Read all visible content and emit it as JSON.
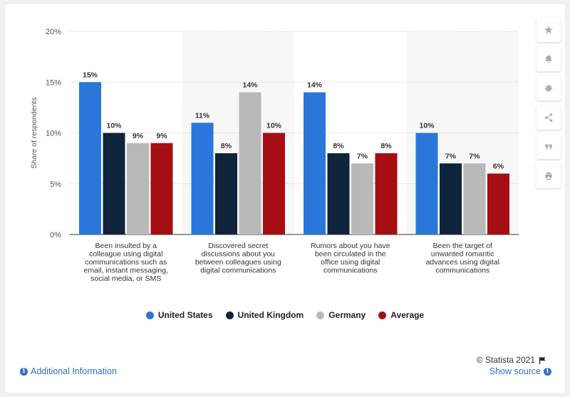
{
  "colors": {
    "United States": "#2a77d9",
    "United Kingdom": "#0f243a",
    "Germany": "#b9b9b9",
    "Average": "#a50f14"
  },
  "sidebar": {
    "icons": [
      "star-icon",
      "bell-icon",
      "gear-icon",
      "share-icon",
      "quote-icon",
      "print-icon"
    ]
  },
  "footer": {
    "credit": "© Statista 2021",
    "additional_info": "Additional Information",
    "show_source": "Show source"
  },
  "chart_data": {
    "type": "bar",
    "ylabel": "Share of respondents",
    "ylim": [
      0,
      20
    ],
    "yticks": [
      "0%",
      "5%",
      "10%",
      "15%",
      "20%"
    ],
    "ytick_values": [
      0,
      5,
      10,
      15,
      20
    ],
    "grid": true,
    "legend_position": "bottom",
    "categories": [
      [
        "Been insulted by a",
        "colleague using digital",
        "communications such as",
        "email, instant messaging,",
        "social media, or SMS"
      ],
      [
        "Discovered secret",
        "discussions about you",
        "between colleagues using",
        "digital communications"
      ],
      [
        "Rumors about you have",
        "been circulated in the",
        "office using digital",
        "communications"
      ],
      [
        "Been the target of",
        "unwanted romantic",
        "advances using digital",
        "communications"
      ]
    ],
    "series": [
      {
        "name": "United States",
        "values": [
          15,
          11,
          14,
          10
        ],
        "labels": [
          "15%",
          "11%",
          "14%",
          "10%"
        ]
      },
      {
        "name": "United Kingdom",
        "values": [
          10,
          8,
          8,
          7
        ],
        "labels": [
          "10%",
          "8%",
          "8%",
          "7%"
        ]
      },
      {
        "name": "Germany",
        "values": [
          9,
          14,
          7,
          7
        ],
        "labels": [
          "9%",
          "14%",
          "7%",
          "7%"
        ]
      },
      {
        "name": "Average",
        "values": [
          9,
          10,
          8,
          6
        ],
        "labels": [
          "9%",
          "10%",
          "8%",
          "6%"
        ]
      }
    ]
  }
}
